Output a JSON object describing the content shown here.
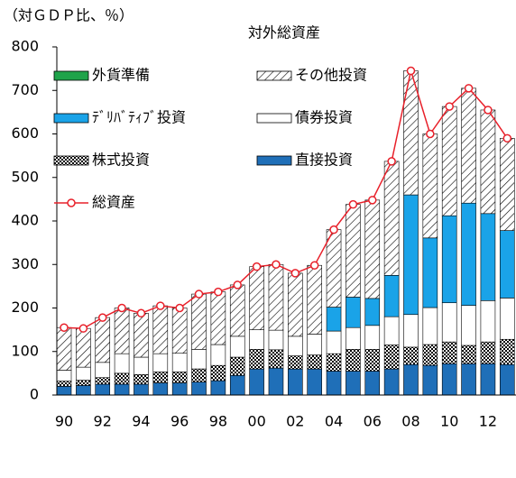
{
  "chart_data": {
    "type": "bar",
    "stacked": true,
    "title": "対外総資産",
    "subtitle": "（対ＧＤＰ比、％）",
    "note": "（",
    "categories": [
      "90",
      null,
      "92",
      null,
      "94",
      null,
      "96",
      null,
      "98",
      null,
      "00",
      null,
      "02",
      null,
      "04",
      null,
      "06",
      null,
      "08",
      null,
      "10",
      null,
      "12",
      null
    ],
    "series": [
      {
        "name": "直接投資",
        "color": "#1f6fb8",
        "pattern": "solid",
        "values": [
          20,
          22,
          25,
          25,
          25,
          28,
          28,
          30,
          33,
          45,
          60,
          62,
          60,
          60,
          55,
          55,
          55,
          60,
          70,
          68,
          72,
          72,
          72,
          70
        ]
      },
      {
        "name": "株式投資",
        "color": "#000000",
        "pattern": "checker",
        "values": [
          12,
          12,
          15,
          25,
          22,
          25,
          25,
          30,
          35,
          42,
          45,
          42,
          30,
          32,
          40,
          50,
          50,
          55,
          40,
          48,
          50,
          42,
          50,
          58
        ]
      },
      {
        "name": "債券投資",
        "color": "#ffffff",
        "pattern": "solid",
        "values": [
          25,
          30,
          35,
          45,
          40,
          42,
          43,
          45,
          48,
          48,
          45,
          45,
          45,
          48,
          52,
          50,
          55,
          65,
          75,
          85,
          90,
          92,
          95,
          95
        ]
      },
      {
        "name": "ﾃﾞﾘﾊﾞﾃｨﾌﾞ投資",
        "color": "#1aa3e8",
        "pattern": "solid",
        "values": [
          0,
          0,
          0,
          0,
          0,
          0,
          0,
          0,
          0,
          0,
          0,
          0,
          0,
          0,
          55,
          70,
          62,
          95,
          275,
          160,
          200,
          235,
          200,
          155
        ]
      },
      {
        "name": "その他投資",
        "color": "#000000",
        "pattern": "hatch",
        "values": [
          98,
          89,
          103,
          105,
          101,
          110,
          104,
          127,
          121,
          118,
          145,
          151,
          145,
          158,
          178,
          213,
          226,
          262,
          285,
          239,
          251,
          264,
          238,
          212
        ]
      },
      {
        "name": "外貨準備",
        "color": "#1fa34a",
        "pattern": "solid",
        "values": [
          null,
          null,
          null,
          null,
          null,
          null,
          null,
          null,
          null,
          null,
          null,
          null,
          null,
          null,
          null,
          null,
          null,
          null,
          null,
          null,
          null,
          null,
          null,
          null
        ]
      }
    ],
    "line": {
      "name": "総資産",
      "color": "#e8202a",
      "values": [
        155,
        153,
        178,
        200,
        188,
        205,
        200,
        232,
        237,
        253,
        295,
        300,
        280,
        298,
        380,
        438,
        448,
        537,
        745,
        600,
        663,
        705,
        655,
        590
      ]
    },
    "ylim": [
      0,
      800
    ],
    "yticks": [
      0,
      100,
      200,
      300,
      400,
      500,
      600,
      700,
      800
    ],
    "legend": "upper left",
    "grid": false
  }
}
